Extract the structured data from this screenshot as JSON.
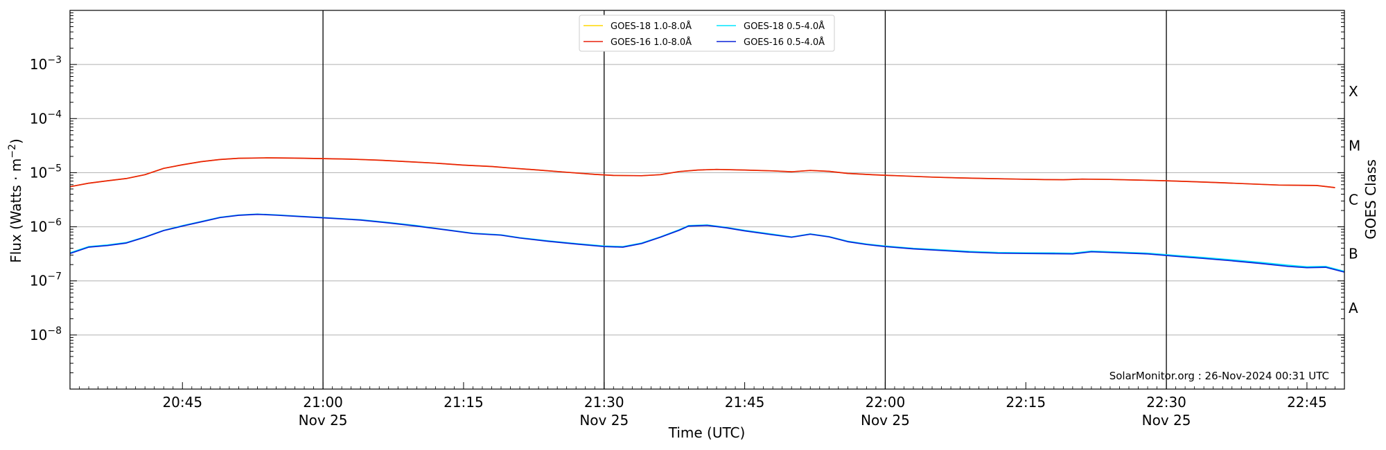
{
  "chart_data": {
    "type": "line",
    "title": "",
    "xlabel": "Time (UTC)",
    "ylabel": "Flux (Watts · m^{-2})",
    "ylabel_right": "GOES Class",
    "x_range": [
      "20:33",
      "22:49"
    ],
    "yscale": "log",
    "ylim": [
      1e-09,
      0.01
    ],
    "grid": "horizontal at decades; vertical black lines at 21:00, 21:30, 22:00, 22:30",
    "legend_placement": "top-center",
    "credit": "SolarMonitor.org : 26-Nov-2024 00:31 UTC",
    "y_ticks": [
      {
        "value": 1e-08,
        "label": "10^{-8}"
      },
      {
        "value": 1e-07,
        "label": "10^{-7}"
      },
      {
        "value": 1e-06,
        "label": "10^{-6}"
      },
      {
        "value": 1e-05,
        "label": "10^{-5}"
      },
      {
        "value": 0.0001,
        "label": "10^{-4}"
      },
      {
        "value": 0.001,
        "label": "10^{-3}"
      }
    ],
    "x_ticks": [
      {
        "minutes": 45,
        "label": "20:45",
        "sublabel": ""
      },
      {
        "minutes": 60,
        "label": "21:00",
        "sublabel": "Nov 25"
      },
      {
        "minutes": 75,
        "label": "21:15",
        "sublabel": ""
      },
      {
        "minutes": 90,
        "label": "21:30",
        "sublabel": "Nov 25"
      },
      {
        "minutes": 105,
        "label": "21:45",
        "sublabel": ""
      },
      {
        "minutes": 120,
        "label": "22:00",
        "sublabel": "Nov 25"
      },
      {
        "minutes": 135,
        "label": "22:15",
        "sublabel": ""
      },
      {
        "minutes": 150,
        "label": "22:30",
        "sublabel": "Nov 25"
      },
      {
        "minutes": 165,
        "label": "22:45",
        "sublabel": ""
      }
    ],
    "class_labels": [
      {
        "label": "X",
        "value": 0.000316
      },
      {
        "label": "M",
        "value": 3.16e-05
      },
      {
        "label": "C",
        "value": 3.16e-06
      },
      {
        "label": "B",
        "value": 3.16e-07
      },
      {
        "label": "A",
        "value": 3.16e-08
      }
    ],
    "series": [
      {
        "name": "GOES-18 1.0-8.0Å",
        "color": "#ffd700",
        "time": [
          "20:33",
          "20:35",
          "20:37",
          "20:39",
          "20:41",
          "20:43",
          "20:45",
          "20:47",
          "20:49",
          "20:51",
          "20:54",
          "20:57",
          "21:00",
          "21:03",
          "21:06",
          "21:09",
          "21:12",
          "21:15",
          "21:18",
          "21:20",
          "21:23",
          "21:26",
          "21:29",
          "21:31",
          "21:34",
          "21:36",
          "21:38",
          "21:40",
          "21:42",
          "21:45",
          "21:48",
          "21:50",
          "21:52",
          "21:54",
          "21:56",
          "21:59",
          "22:02",
          "22:05",
          "22:08",
          "22:11",
          "22:14",
          "22:17",
          "22:19",
          "22:21",
          "22:24",
          "22:27",
          "22:30",
          "22:33",
          "22:36",
          "22:39",
          "22:42",
          "22:44",
          "22:46",
          "22:48"
        ],
        "values": [
          5.5e-06,
          6.4e-06,
          7.1e-06,
          7.8e-06,
          9.2e-06,
          1.2e-05,
          1.4e-05,
          1.6e-05,
          1.75e-05,
          1.85e-05,
          1.88e-05,
          1.86e-05,
          1.82e-05,
          1.78e-05,
          1.7e-05,
          1.6e-05,
          1.5e-05,
          1.38e-05,
          1.3e-05,
          1.22e-05,
          1.12e-05,
          1.02e-05,
          9.3e-06,
          8.9e-06,
          8.8e-06,
          9.2e-06,
          1.05e-05,
          1.12e-05,
          1.15e-05,
          1.12e-05,
          1.08e-05,
          1.04e-05,
          1.1e-05,
          1.06e-05,
          9.7e-06,
          9.1e-06,
          8.7e-06,
          8.3e-06,
          8e-06,
          7.8e-06,
          7.6e-06,
          7.45e-06,
          7.4e-06,
          7.6e-06,
          7.5e-06,
          7.3e-06,
          7.1e-06,
          6.8e-06,
          6.5e-06,
          6.2e-06,
          5.9e-06,
          5.85e-06,
          5.8e-06,
          5.3e-06
        ]
      },
      {
        "name": "GOES-16 1.0-8.0Å",
        "color": "#e8200c",
        "time": [
          "20:33",
          "20:35",
          "20:37",
          "20:39",
          "20:41",
          "20:43",
          "20:45",
          "20:47",
          "20:49",
          "20:51",
          "20:54",
          "20:57",
          "21:00",
          "21:03",
          "21:06",
          "21:09",
          "21:12",
          "21:15",
          "21:18",
          "21:20",
          "21:23",
          "21:26",
          "21:29",
          "21:31",
          "21:34",
          "21:36",
          "21:38",
          "21:40",
          "21:42",
          "21:45",
          "21:48",
          "21:50",
          "21:52",
          "21:54",
          "21:56",
          "21:59",
          "22:02",
          "22:05",
          "22:08",
          "22:11",
          "22:14",
          "22:17",
          "22:19",
          "22:21",
          "22:24",
          "22:27",
          "22:30",
          "22:33",
          "22:36",
          "22:39",
          "22:42",
          "22:44",
          "22:46",
          "22:48"
        ],
        "values": [
          5.5e-06,
          6.4e-06,
          7.1e-06,
          7.8e-06,
          9.2e-06,
          1.2e-05,
          1.4e-05,
          1.6e-05,
          1.75e-05,
          1.85e-05,
          1.88e-05,
          1.86e-05,
          1.82e-05,
          1.78e-05,
          1.7e-05,
          1.6e-05,
          1.5e-05,
          1.38e-05,
          1.3e-05,
          1.22e-05,
          1.12e-05,
          1.02e-05,
          9.3e-06,
          8.9e-06,
          8.8e-06,
          9.2e-06,
          1.05e-05,
          1.12e-05,
          1.15e-05,
          1.12e-05,
          1.08e-05,
          1.04e-05,
          1.1e-05,
          1.06e-05,
          9.7e-06,
          9.1e-06,
          8.7e-06,
          8.3e-06,
          8e-06,
          7.8e-06,
          7.6e-06,
          7.45e-06,
          7.4e-06,
          7.6e-06,
          7.5e-06,
          7.3e-06,
          7.1e-06,
          6.8e-06,
          6.5e-06,
          6.2e-06,
          5.9e-06,
          5.85e-06,
          5.8e-06,
          5.3e-06
        ]
      },
      {
        "name": "GOES-18 0.5-4.0Å",
        "color": "#00e5ff",
        "time": [
          "20:33",
          "20:35",
          "20:37",
          "20:39",
          "20:41",
          "20:43",
          "20:45",
          "20:47",
          "20:49",
          "20:51",
          "20:53",
          "20:55",
          "20:58",
          "21:01",
          "21:04",
          "21:07",
          "21:10",
          "21:13",
          "21:16",
          "21:19",
          "21:21",
          "21:24",
          "21:27",
          "21:30",
          "21:32",
          "21:34",
          "21:36",
          "21:38",
          "21:39",
          "21:41",
          "21:43",
          "21:45",
          "21:48",
          "21:50",
          "21:52",
          "21:54",
          "21:56",
          "21:58",
          "22:00",
          "22:03",
          "22:06",
          "22:09",
          "22:12",
          "22:15",
          "22:18",
          "22:20",
          "22:22",
          "22:25",
          "22:28",
          "22:31",
          "22:34",
          "22:37",
          "22:40",
          "22:43",
          "22:45",
          "22:47",
          "22:49"
        ],
        "values": [
          3.3e-07,
          4.3e-07,
          4.6e-07,
          5.1e-07,
          6.5e-07,
          8.6e-07,
          1.05e-06,
          1.25e-06,
          1.5e-06,
          1.65e-06,
          1.72e-06,
          1.66e-06,
          1.55e-06,
          1.45e-06,
          1.35e-06,
          1.2e-06,
          1.05e-06,
          8.9e-07,
          7.6e-07,
          7.1e-07,
          6.3e-07,
          5.5e-07,
          4.9e-07,
          4.4e-07,
          4.3e-07,
          5e-07,
          6.5e-07,
          8.8e-07,
          1.05e-06,
          1.08e-06,
          9.8e-07,
          8.6e-07,
          7.3e-07,
          6.5e-07,
          7.4e-07,
          6.6e-07,
          5.4e-07,
          4.8e-07,
          4.4e-07,
          4e-07,
          3.75e-07,
          3.5e-07,
          3.35e-07,
          3.3e-07,
          3.28e-07,
          3.25e-07,
          3.55e-07,
          3.4e-07,
          3.25e-07,
          2.95e-07,
          2.7e-07,
          2.45e-07,
          2.2e-07,
          1.95e-07,
          1.82e-07,
          1.85e-07,
          1.5e-07
        ]
      },
      {
        "name": "GOES-16 0.5-4.0Å",
        "color": "#0a22d8",
        "time": [
          "20:33",
          "20:35",
          "20:37",
          "20:39",
          "20:41",
          "20:43",
          "20:45",
          "20:47",
          "20:49",
          "20:51",
          "20:53",
          "20:55",
          "20:58",
          "21:01",
          "21:04",
          "21:07",
          "21:10",
          "21:13",
          "21:16",
          "21:19",
          "21:21",
          "21:24",
          "21:27",
          "21:30",
          "21:32",
          "21:34",
          "21:36",
          "21:38",
          "21:39",
          "21:41",
          "21:43",
          "21:45",
          "21:48",
          "21:50",
          "21:52",
          "21:54",
          "21:56",
          "21:58",
          "22:00",
          "22:03",
          "22:06",
          "22:09",
          "22:12",
          "22:15",
          "22:18",
          "22:20",
          "22:22",
          "22:25",
          "22:28",
          "22:31",
          "22:34",
          "22:37",
          "22:40",
          "22:43",
          "22:45",
          "22:47",
          "22:49"
        ],
        "values": [
          3.2e-07,
          4.2e-07,
          4.5e-07,
          5e-07,
          6.4e-07,
          8.5e-07,
          1.03e-06,
          1.23e-06,
          1.48e-06,
          1.63e-06,
          1.7e-06,
          1.64e-06,
          1.53e-06,
          1.43e-06,
          1.33e-06,
          1.18e-06,
          1.03e-06,
          8.8e-07,
          7.5e-07,
          7e-07,
          6.2e-07,
          5.4e-07,
          4.8e-07,
          4.3e-07,
          4.2e-07,
          4.9e-07,
          6.4e-07,
          8.6e-07,
          1.03e-06,
          1.06e-06,
          9.6e-07,
          8.4e-07,
          7.1e-07,
          6.4e-07,
          7.3e-07,
          6.5e-07,
          5.3e-07,
          4.7e-07,
          4.3e-07,
          3.9e-07,
          3.65e-07,
          3.4e-07,
          3.25e-07,
          3.2e-07,
          3.18e-07,
          3.15e-07,
          3.45e-07,
          3.3e-07,
          3.15e-07,
          2.85e-07,
          2.6e-07,
          2.35e-07,
          2.1e-07,
          1.85e-07,
          1.75e-07,
          1.78e-07,
          1.45e-07
        ]
      }
    ]
  }
}
